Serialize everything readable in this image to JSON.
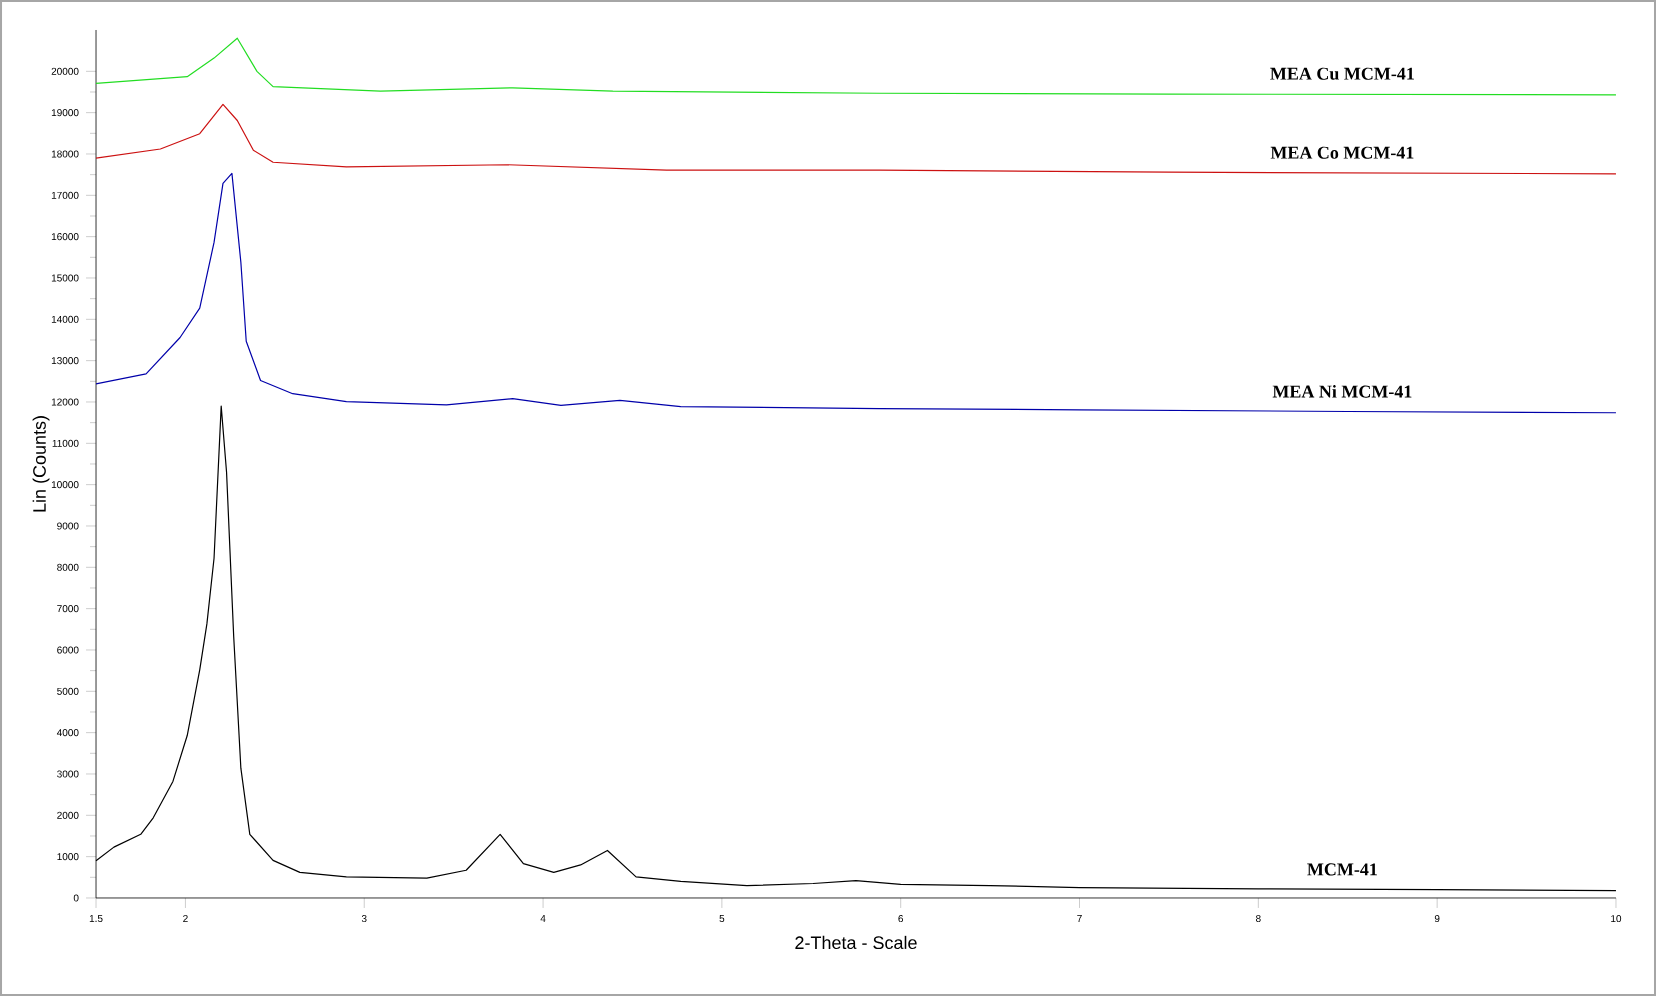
{
  "chart_data": {
    "type": "line",
    "xlabel": "2-Theta - Scale",
    "ylabel": "Lin (Counts)",
    "xlim": [
      1.5,
      10
    ],
    "ylim": [
      0,
      21000
    ],
    "xticks": [
      1.5,
      2,
      3,
      4,
      5,
      6,
      7,
      8,
      9,
      10
    ],
    "yticks": [
      0,
      1000,
      2000,
      3000,
      4000,
      5000,
      6000,
      7000,
      8000,
      9000,
      10000,
      11000,
      12000,
      13000,
      14000,
      15000,
      16000,
      17000,
      18000,
      19000,
      20000
    ],
    "series": [
      {
        "name": "MEA Cu MCM-41",
        "color": "#22dd22",
        "x": [
          1.5,
          2.01,
          2.16,
          2.29,
          2.4,
          2.49,
          3.09,
          3.83,
          4.39,
          5.88,
          7.5,
          10
        ],
        "values": [
          19710,
          19870,
          20320,
          20800,
          20000,
          19630,
          19520,
          19600,
          19520,
          19470,
          19450,
          19430
        ]
      },
      {
        "name": "MEA Co MCM-41",
        "color": "#cc1111",
        "x": [
          1.5,
          1.86,
          2.08,
          2.21,
          2.29,
          2.38,
          2.49,
          2.9,
          3.8,
          4.69,
          5.88,
          7.5,
          10
        ],
        "values": [
          17900,
          18120,
          18490,
          19200,
          18810,
          18090,
          17800,
          17690,
          17740,
          17610,
          17610,
          17560,
          17520
        ]
      },
      {
        "name": "MEA Ni MCM-41",
        "color": "#0000aa",
        "x": [
          1.5,
          1.78,
          1.97,
          2.08,
          2.16,
          2.21,
          2.26,
          2.31,
          2.34,
          2.42,
          2.6,
          2.9,
          3.46,
          3.83,
          4.1,
          4.43,
          4.77,
          5.88,
          7,
          8.5,
          10
        ],
        "values": [
          12440,
          12680,
          13560,
          14270,
          15860,
          17290,
          17530,
          15380,
          13470,
          12520,
          12200,
          12010,
          11930,
          12080,
          11920,
          12040,
          11890,
          11840,
          11810,
          11770,
          11740
        ]
      },
      {
        "name": "MCM-41",
        "color": "#000000",
        "x": [
          1.5,
          1.6,
          1.75,
          1.82,
          1.93,
          2.01,
          2.08,
          2.12,
          2.16,
          2.2,
          2.23,
          2.27,
          2.31,
          2.36,
          2.49,
          2.64,
          2.9,
          3.35,
          3.57,
          3.76,
          3.89,
          4.06,
          4.21,
          4.36,
          4.52,
          4.77,
          5.14,
          5.51,
          5.75,
          6,
          6.5,
          7,
          8,
          9,
          10
        ],
        "values": [
          900,
          1230,
          1540,
          1940,
          2820,
          3930,
          5520,
          6630,
          8220,
          11900,
          10300,
          6320,
          3140,
          1540,
          910,
          620,
          510,
          480,
          670,
          1540,
          830,
          620,
          800,
          1150,
          510,
          400,
          300,
          350,
          420,
          330,
          300,
          250,
          220,
          200,
          180
        ]
      }
    ]
  }
}
